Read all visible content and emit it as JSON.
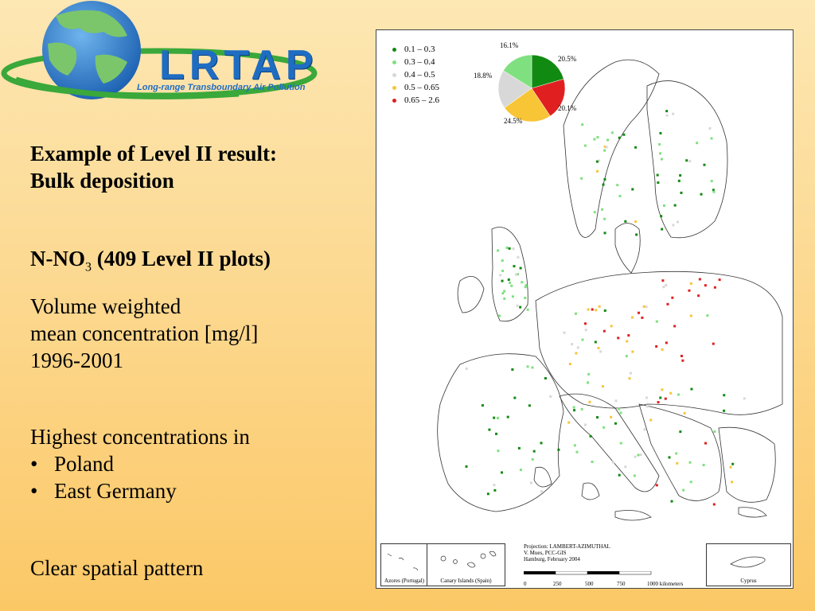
{
  "logo": {
    "title": "LRTAP",
    "subtitle": "Long-range Transboundary Air Pollution"
  },
  "heading": {
    "line1": "Example of Level II result:",
    "line2": "Bulk deposition"
  },
  "subheading": {
    "prefix": "N-NO",
    "subscript": "3",
    "suffix": " (409 Level II plots)"
  },
  "description": {
    "line1": "Volume weighted",
    "line2": "mean concentration [mg/l]",
    "line3": "1996-2001"
  },
  "highlights": {
    "intro": "Highest concentrations in",
    "bullet": "•",
    "items": [
      "Poland",
      "East Germany"
    ]
  },
  "conclusion": "Clear spatial pattern",
  "map": {
    "legend": [
      {
        "label": "0.1 –  0.3",
        "color": "#118a11"
      },
      {
        "label": "0.3 –  0.4",
        "color": "#7fe07f"
      },
      {
        "label": "0.4 –  0.5",
        "color": "#d8d8d8"
      },
      {
        "label": "0.5 –  0.65",
        "color": "#f7c536"
      },
      {
        "label": "0.65 –  2.6",
        "color": "#e02020"
      }
    ],
    "pie": [
      {
        "share": 20.5,
        "label": "20.5%",
        "color": "#118a11"
      },
      {
        "share": 20.1,
        "label": "20.1%",
        "color": "#e02020"
      },
      {
        "share": 24.5,
        "label": "24.5%",
        "color": "#f7c536"
      },
      {
        "share": 18.8,
        "label": "18.8%",
        "color": "#d8d8d8"
      },
      {
        "share": 16.1,
        "label": "16.1%",
        "color": "#7fe07f"
      }
    ],
    "projection": [
      "Projection: LAMBERT-AZIMUTHAL",
      "V. Mues, PCC-GIS",
      "Hamburg, February 2004"
    ],
    "scale_ticks": [
      "0",
      "250",
      "500",
      "750",
      "1000 kilometers"
    ],
    "insets": [
      "Azores (Portugal)",
      "Canary Islands (Spain)",
      "Cyprus"
    ]
  }
}
